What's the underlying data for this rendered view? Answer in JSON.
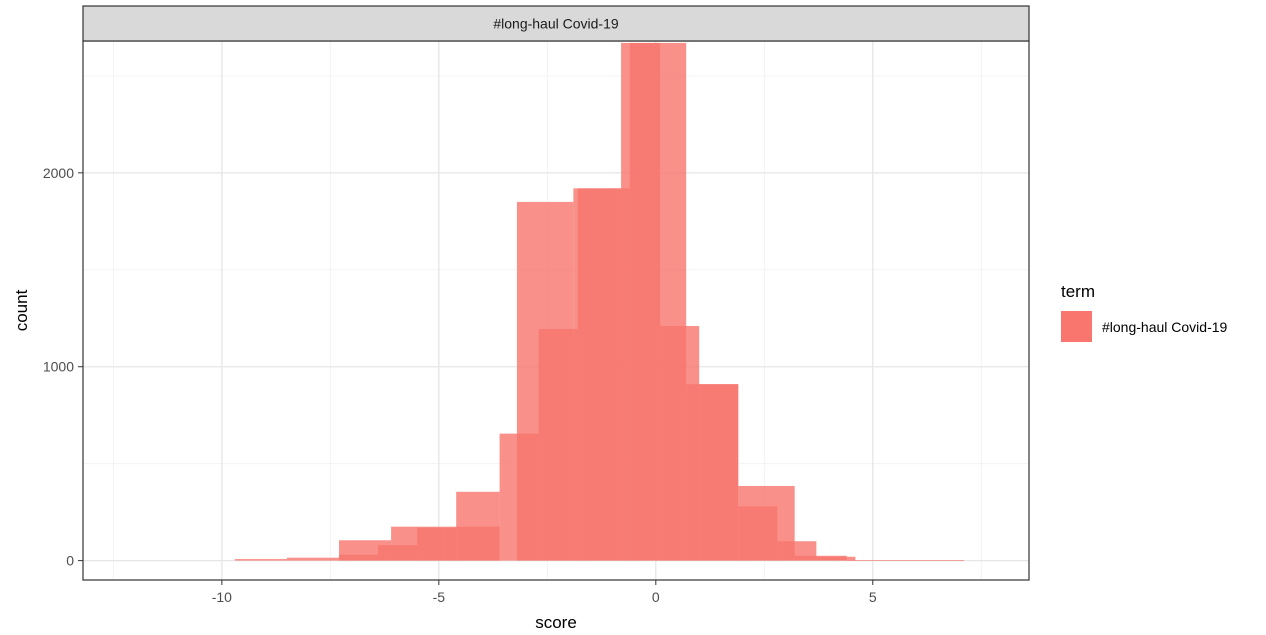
{
  "chart_data": {
    "type": "bar",
    "facet_title": "#long-haul Covid-19",
    "xlabel": "score",
    "ylabel": "count",
    "xlim": [
      -13.2,
      8.6
    ],
    "ylim": [
      -100,
      2680
    ],
    "x_ticks": [
      -10,
      -5,
      0,
      5
    ],
    "x_tick_labels": [
      "-10",
      "-5",
      "0",
      "5"
    ],
    "x_minor_ticks": [
      -12.5,
      -7.5,
      -2.5,
      2.5,
      7.5
    ],
    "y_ticks": [
      0,
      1000,
      2000
    ],
    "y_tick_labels": [
      "0",
      "1000",
      "2000"
    ],
    "y_minor_ticks": [
      500,
      1500,
      2500
    ],
    "grid": true,
    "theme": "bw",
    "legend": {
      "title": "term",
      "placement": "right",
      "entries": [
        {
          "label": "#long-haul Covid-19",
          "color": "#F8766D"
        }
      ]
    },
    "series": [
      {
        "name": "#long-haul Covid-19",
        "color": "#F8766D",
        "opacity": 0.8,
        "bins": [
          {
            "x0": -9.7,
            "x1": -8.5,
            "count": 8
          },
          {
            "x0": -8.5,
            "x1": -7.3,
            "count": 15
          },
          {
            "x0": -7.3,
            "x1": -6.1,
            "count": 105
          },
          {
            "x0": -6.1,
            "x1": -4.9,
            "count": 175
          },
          {
            "x0": -4.9,
            "x1": -3.6,
            "count": 175
          },
          {
            "x0": -3.2,
            "x1": -1.9,
            "count": 1850
          },
          {
            "x0": -1.9,
            "x1": -0.6,
            "count": 1920
          },
          {
            "x0": -0.6,
            "x1": 0.7,
            "count": 2670
          },
          {
            "x0": 0.7,
            "x1": 1.9,
            "count": 910
          },
          {
            "x0": 1.9,
            "x1": 3.2,
            "count": 385
          },
          {
            "x0": 3.2,
            "x1": 4.4,
            "count": 25
          },
          {
            "x0": 4.4,
            "x1": 7.1,
            "count": 3
          }
        ]
      },
      {
        "name": "#long-haul Covid-19",
        "color": "#F8766D",
        "opacity": 0.8,
        "bins": [
          {
            "x0": -7.3,
            "x1": -6.4,
            "count": 30
          },
          {
            "x0": -6.4,
            "x1": -5.5,
            "count": 80
          },
          {
            "x0": -5.5,
            "x1": -4.6,
            "count": 170
          },
          {
            "x0": -4.6,
            "x1": -3.6,
            "count": 355
          },
          {
            "x0": -3.6,
            "x1": -2.7,
            "count": 655
          },
          {
            "x0": -2.7,
            "x1": -1.8,
            "count": 1195
          },
          {
            "x0": -1.8,
            "x1": -0.8,
            "count": 1920
          },
          {
            "x0": -0.8,
            "x1": 0.1,
            "count": 2670
          },
          {
            "x0": 0.1,
            "x1": 1.0,
            "count": 1210
          },
          {
            "x0": 1.0,
            "x1": 1.9,
            "count": 910
          },
          {
            "x0": 1.9,
            "x1": 2.8,
            "count": 280
          },
          {
            "x0": 2.8,
            "x1": 3.7,
            "count": 100
          },
          {
            "x0": 3.7,
            "x1": 4.6,
            "count": 20
          }
        ]
      }
    ]
  }
}
